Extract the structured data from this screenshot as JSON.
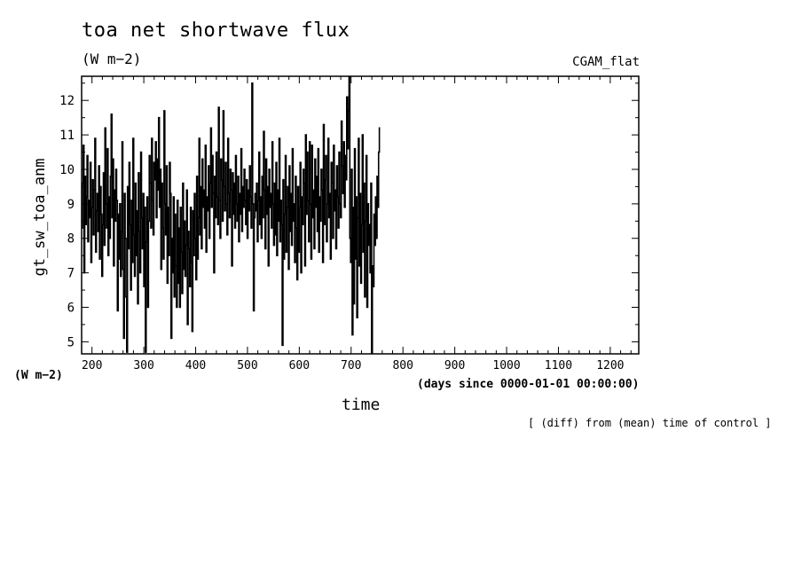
{
  "figure": {
    "title": "toa net shortwave flux",
    "units": "(W m−2)",
    "run_label": "CGAM_flat",
    "y_units_label": "(W m−2)",
    "x_units_label": "(days since 0000-01-01 00:00:00)",
    "note": "[ (diff) from (mean) time of control ]"
  },
  "chart_data": {
    "type": "line",
    "xlabel": "time",
    "ylabel": "gt_sw_toa_anm",
    "xlim": [
      180,
      1255
    ],
    "ylim": [
      4.65,
      12.7
    ],
    "xticks": [
      200,
      300,
      400,
      500,
      600,
      700,
      800,
      900,
      1000,
      1100,
      1200
    ],
    "yticks": [
      5,
      6,
      7,
      8,
      9,
      10,
      11,
      12
    ],
    "grid": false,
    "line_color": "#000000",
    "series": [
      {
        "x_start": 180,
        "x_step": 1.5,
        "values": [
          8.3,
          9.6,
          10.7,
          7.0,
          9.8,
          8.4,
          9.2,
          10.4,
          7.9,
          9.1,
          8.6,
          10.2,
          7.3,
          8.9,
          9.7,
          8.1,
          9.4,
          10.9,
          7.6,
          8.8,
          9.3,
          8.2,
          10.1,
          7.4,
          9.5,
          8.7,
          6.9,
          8.4,
          9.9,
          7.8,
          11.2,
          9.0,
          8.3,
          10.6,
          7.5,
          9.2,
          8.0,
          9.8,
          11.6,
          8.6,
          10.3,
          7.2,
          9.4,
          8.5,
          10.0,
          9.1,
          5.9,
          8.7,
          7.4,
          9.0,
          6.9,
          8.2,
          10.8,
          7.1,
          5.1,
          9.3,
          8.0,
          6.3,
          4.7,
          9.5,
          7.7,
          10.2,
          8.4,
          6.5,
          9.1,
          7.3,
          10.9,
          8.1,
          6.9,
          9.6,
          7.5,
          8.8,
          6.1,
          9.9,
          8.2,
          7.0,
          10.5,
          8.6,
          7.7,
          9.3,
          6.6,
          8.9,
          4.7,
          7.9,
          9.2,
          6.0,
          8.5,
          10.4,
          9.6,
          8.3,
          10.9,
          9.1,
          8.1,
          10.2,
          9.7,
          10.8,
          8.6,
          10.3,
          9.4,
          11.5,
          8.9,
          10.0,
          7.1,
          9.6,
          8.3,
          7.4,
          11.7,
          9.0,
          8.1,
          10.1,
          6.7,
          8.9,
          7.5,
          10.2,
          9.3,
          5.1,
          8.0,
          7.0,
          9.2,
          6.3,
          8.7,
          7.2,
          6.0,
          9.1,
          6.7,
          8.3,
          6.0,
          8.9,
          7.6,
          6.4,
          9.6,
          7.1,
          8.5,
          6.9,
          7.8,
          9.4,
          5.5,
          8.2,
          7.7,
          6.6,
          8.9,
          7.3,
          5.3,
          8.8,
          7.5,
          9.3,
          8.0,
          6.8,
          9.8,
          7.4,
          8.6,
          10.9,
          8.1,
          9.5,
          7.7,
          10.3,
          8.9,
          9.4,
          8.3,
          10.7,
          7.6,
          9.2,
          8.8,
          10.1,
          8.0,
          9.6,
          11.2,
          8.9,
          10.4,
          9.3,
          7.0,
          9.8,
          8.6,
          10.5,
          9.2,
          8.4,
          11.8,
          9.1,
          8.0,
          10.3,
          9.7,
          8.5,
          11.7,
          9.5,
          8.8,
          10.2,
          9.0,
          8.1,
          10.9,
          9.3,
          8.6,
          10.0,
          9.4,
          7.2,
          9.9,
          8.7,
          9.6,
          8.3,
          10.4,
          9.0,
          8.5,
          9.8,
          7.9,
          9.3,
          8.7,
          10.6,
          8.2,
          9.5,
          8.9,
          10.0,
          9.1,
          8.4,
          9.7,
          8.0,
          9.4,
          8.8,
          10.1,
          9.2,
          8.3,
          12.5,
          9.0,
          5.9,
          8.6,
          9.3,
          8.8,
          9.6,
          7.9,
          9.1,
          10.5,
          8.4,
          9.2,
          8.0,
          9.8,
          8.6,
          11.1,
          9.4,
          7.7,
          10.3,
          8.7,
          9.5,
          7.2,
          10.0,
          8.9,
          9.3,
          8.3,
          10.8,
          9.0,
          7.8,
          9.6,
          8.1,
          10.2,
          7.5,
          9.4,
          8.5,
          10.9,
          7.9,
          9.1,
          8.4,
          4.9,
          9.7,
          7.4,
          8.7,
          10.4,
          7.6,
          8.9,
          9.5,
          7.1,
          10.1,
          8.2,
          9.3,
          7.8,
          10.6,
          8.5,
          9.0,
          7.3,
          9.8,
          8.3,
          6.8,
          9.5,
          7.6,
          8.9,
          10.2,
          7.0,
          9.2,
          8.4,
          10.0,
          9.6,
          7.2,
          11.0,
          8.7,
          10.5,
          9.1,
          7.9,
          10.8,
          9.0,
          7.4,
          10.7,
          8.6,
          9.4,
          7.7,
          10.3,
          8.9,
          9.8,
          8.2,
          10.6,
          7.6,
          9.2,
          8.5,
          10.0,
          9.4,
          7.3,
          11.3,
          8.4,
          9.7,
          10.4,
          7.9,
          9.0,
          10.9,
          8.6,
          9.3,
          7.4,
          10.2,
          9.6,
          8.0,
          10.7,
          8.8,
          9.4,
          7.7,
          10.1,
          9.2,
          8.3,
          10.5,
          9.0,
          8.6,
          11.4,
          10.1,
          9.3,
          10.8,
          8.9,
          10.4,
          9.7,
          12.1,
          10.6,
          11.7,
          12.7,
          8.0,
          7.3,
          10.0,
          5.2,
          8.9,
          6.1,
          10.6,
          7.4,
          9.2,
          5.7,
          8.6,
          10.9,
          7.2,
          9.3,
          6.7,
          8.4,
          11.0,
          7.6,
          9.6,
          6.3,
          8.5,
          10.4,
          6.0,
          9.0,
          7.8,
          8.4,
          7.0,
          9.6,
          4.65,
          7.2,
          6.6,
          8.7,
          7.8,
          9.2,
          8.0,
          9.8,
          8.9,
          10.5,
          11.2
        ]
      }
    ]
  }
}
